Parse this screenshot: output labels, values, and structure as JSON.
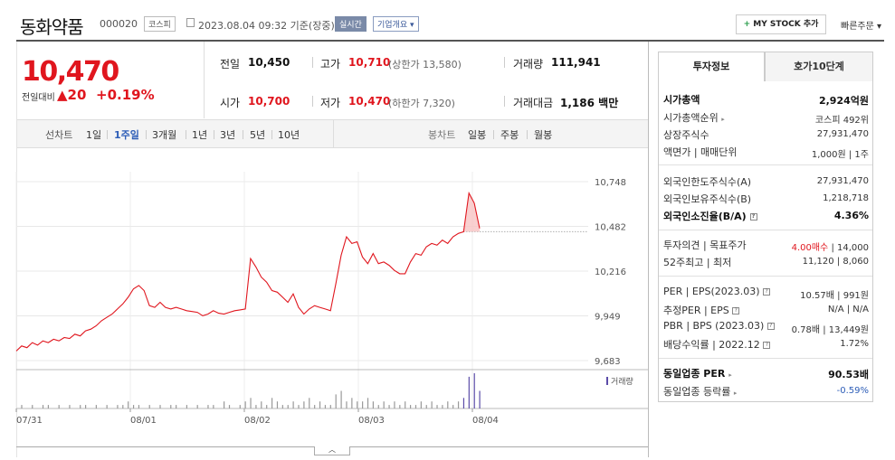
{
  "header": {
    "name": "동화약품",
    "code": "000020",
    "market": "코스피",
    "datetime": "2023.08.04 09:32 기준(장중)",
    "realtime": "실시간",
    "corp_info": "기업개요",
    "my_stock": "MY STOCK 추가",
    "quick_order": "빠른주문"
  },
  "price": {
    "current": "10,470",
    "change_label": "전일대비",
    "change": "20",
    "change_pct": "+0.19%"
  },
  "summary": {
    "prev_label": "전일",
    "prev": "10,450",
    "high_label": "고가",
    "high": "10,710",
    "upper_limit": "(상한가 13,580)",
    "volume_label": "거래량",
    "volume": "111,941",
    "open_label": "시가",
    "open": "10,700",
    "low_label": "저가",
    "low": "10,470",
    "lower_limit": "(하한가 7,320)",
    "amount_label": "거래대금",
    "amount": "1,186",
    "amount_unit": "백만"
  },
  "chart_tabs": {
    "line_label": "선차트",
    "periods": [
      "1일",
      "1주일",
      "3개월",
      "1년",
      "3년",
      "5년",
      "10년"
    ],
    "active_period": "1주일",
    "candle_label": "봉차트",
    "candles": [
      "일봉",
      "주봉",
      "월봉"
    ]
  },
  "chart_data": {
    "type": "line",
    "y_ticks": [
      "10,748",
      "10,482",
      "10,216",
      "9,949",
      "9,683"
    ],
    "ylim": [
      9683,
      10748
    ],
    "x_ticks": [
      "07/31",
      "08/01",
      "08/02",
      "08/03",
      "08/04"
    ],
    "volume_label": "거래량",
    "reference_line": 10450,
    "series": [
      {
        "values": [
          9740,
          9770,
          9760,
          9790,
          9775,
          9800,
          9790,
          9810,
          9800,
          9820,
          9815,
          9840,
          9830,
          9860,
          9870,
          9890,
          9920,
          9940,
          9960,
          9990,
          10020,
          10060,
          10110,
          10130,
          10100,
          10010,
          10000,
          10030,
          10000,
          9990,
          10000,
          9990,
          9980,
          9975,
          9970,
          9950,
          9960,
          9980,
          9965,
          9960,
          9970,
          9980,
          9985,
          9990,
          10290,
          10240,
          10180,
          10150,
          10100,
          10090,
          10060,
          10030,
          10080,
          10000,
          9960,
          9990,
          10010,
          10000,
          9990,
          9980,
          10140,
          10310,
          10420,
          10380,
          10390,
          10300,
          10260,
          10320,
          10260,
          10270,
          10250,
          10220,
          10200,
          10200,
          10270,
          10320,
          10310,
          10360,
          10380,
          10370,
          10400,
          10380,
          10420,
          10440,
          10450,
          10680,
          10620,
          10470
        ]
      }
    ],
    "volume": [
      0,
      1,
      0,
      1,
      0,
      1,
      1,
      0,
      1,
      0,
      1,
      0,
      1,
      1,
      0,
      1,
      0,
      1,
      0,
      1,
      1,
      2,
      1,
      1,
      0,
      1,
      0,
      1,
      0,
      1,
      1,
      0,
      1,
      0,
      1,
      0,
      1,
      1,
      0,
      2,
      1,
      0,
      1,
      2,
      3,
      1,
      2,
      1,
      3,
      2,
      1,
      1,
      2,
      1,
      2,
      3,
      1,
      2,
      1,
      1,
      4,
      5,
      2,
      3,
      2,
      2,
      3,
      2,
      1,
      2,
      1,
      2,
      1,
      2,
      1,
      1,
      2,
      1,
      2,
      1,
      1,
      2,
      1,
      2,
      3,
      9,
      10,
      5
    ]
  },
  "invest": {
    "tab1": "투자정보",
    "tab2": "호가10단계",
    "g1": [
      {
        "label": "시가총액",
        "value": "2,924억원",
        "bold": true
      },
      {
        "label": "시가총액순위",
        "value": "코스피 492위"
      },
      {
        "label": "상장주식수",
        "value": "27,931,470"
      },
      {
        "label": "액면가 | 매매단위",
        "value": "1,000원 | 1주"
      }
    ],
    "g2": [
      {
        "label": "외국인한도주식수(A)",
        "value": "27,931,470"
      },
      {
        "label": "외국인보유주식수(B)",
        "value": "1,218,718"
      },
      {
        "label": "외국인소진율(B/A)",
        "value": "4.36%",
        "bold": true
      }
    ],
    "g3": [
      {
        "label": "투자의견 | 목표주가",
        "value_red": "4.00매수",
        "value": "| 14,000"
      },
      {
        "label": "52주최고 | 최저",
        "value": "11,120 | 8,060"
      }
    ],
    "g4": [
      {
        "label": "PER | EPS(2023.03)",
        "value": "10.57배 | 991원"
      },
      {
        "label": "추정PER | EPS",
        "value": "N/A | N/A"
      },
      {
        "label": "PBR | BPS (2023.03)",
        "value": "0.78배 | 13,449원"
      },
      {
        "label": "배당수익률 | 2022.12",
        "value": "1.72%"
      }
    ],
    "g5": [
      {
        "label": "동일업종 PER",
        "value": "90.53배",
        "bold": true
      },
      {
        "label": "동일업종 등락률",
        "value": "-0.59%",
        "blue": true
      }
    ]
  }
}
